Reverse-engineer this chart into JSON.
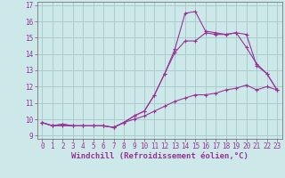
{
  "title": "",
  "xlabel": "Windchill (Refroidissement éolien,°C)",
  "ylabel": "",
  "bg_color": "#cce8e8",
  "grid_color": "#aacccc",
  "line_color": "#993399",
  "xlim": [
    -0.5,
    23.5
  ],
  "ylim": [
    8.8,
    17.2
  ],
  "yticks": [
    9,
    10,
    11,
    12,
    13,
    14,
    15,
    16,
    17
  ],
  "xticks": [
    0,
    1,
    2,
    3,
    4,
    5,
    6,
    7,
    8,
    9,
    10,
    11,
    12,
    13,
    14,
    15,
    16,
    17,
    18,
    19,
    20,
    21,
    22,
    23
  ],
  "line1_x": [
    0,
    1,
    2,
    3,
    4,
    5,
    6,
    7,
    8,
    9,
    10,
    11,
    12,
    13,
    14,
    15,
    16,
    17,
    18,
    19,
    20,
    21,
    22,
    23
  ],
  "line1_y": [
    9.8,
    9.6,
    9.7,
    9.6,
    9.6,
    9.6,
    9.6,
    9.5,
    9.8,
    10.2,
    10.5,
    11.5,
    12.8,
    14.1,
    14.8,
    14.8,
    15.3,
    15.2,
    15.2,
    15.3,
    15.2,
    13.3,
    12.8,
    11.8
  ],
  "line2_x": [
    0,
    1,
    2,
    3,
    4,
    5,
    6,
    7,
    8,
    9,
    10,
    11,
    12,
    13,
    14,
    15,
    16,
    17,
    18,
    19,
    20,
    21,
    22,
    23
  ],
  "line2_y": [
    9.8,
    9.6,
    9.7,
    9.6,
    9.6,
    9.6,
    9.6,
    9.5,
    9.8,
    10.2,
    10.5,
    11.5,
    12.8,
    14.3,
    16.5,
    16.6,
    15.4,
    15.3,
    15.2,
    15.3,
    14.4,
    13.4,
    12.8,
    11.8
  ],
  "line3_x": [
    0,
    1,
    2,
    3,
    4,
    5,
    6,
    7,
    8,
    9,
    10,
    11,
    12,
    13,
    14,
    15,
    16,
    17,
    18,
    19,
    20,
    21,
    22,
    23
  ],
  "line3_y": [
    9.8,
    9.6,
    9.6,
    9.6,
    9.6,
    9.6,
    9.6,
    9.5,
    9.8,
    10.0,
    10.2,
    10.5,
    10.8,
    11.1,
    11.3,
    11.5,
    11.5,
    11.6,
    11.8,
    11.9,
    12.1,
    11.8,
    12.0,
    11.8
  ],
  "marker": "+",
  "markersize": 3,
  "linewidth": 0.8,
  "tick_fontsize": 5.5,
  "label_fontsize": 6.5
}
